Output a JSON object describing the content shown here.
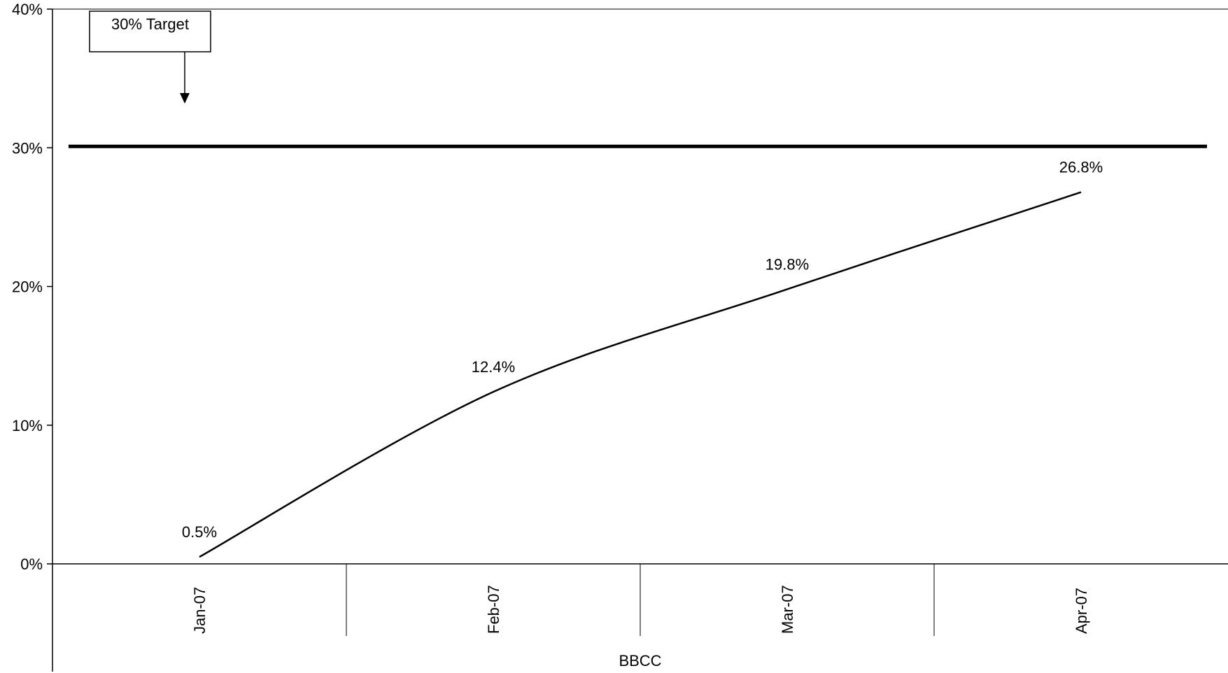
{
  "chart_data": {
    "type": "line",
    "categories": [
      "Jan-07",
      "Feb-07",
      "Mar-07",
      "Apr-07"
    ],
    "series": [
      {
        "values": [
          0.5,
          12.4,
          19.8,
          26.8
        ],
        "data_labels": [
          "0.5%",
          "12.4%",
          "19.8%",
          "26.8%"
        ],
        "color": "#000000",
        "smooth": true
      }
    ],
    "target": {
      "value": 30,
      "label": "30% Target",
      "color": "#000000"
    },
    "xlabel": "BBCC",
    "ylabel": "",
    "title": "",
    "ylim": [
      0,
      40
    ],
    "yticks": [
      0,
      10,
      20,
      30,
      40
    ],
    "ytick_labels": [
      "0%",
      "10%",
      "20%",
      "30%",
      "40%"
    ],
    "grid": false,
    "legend": "none"
  }
}
